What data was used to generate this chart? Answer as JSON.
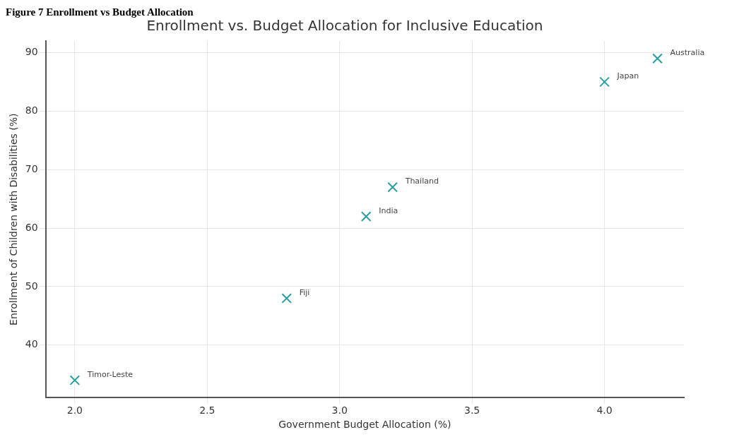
{
  "chart_data": {
    "type": "scatter",
    "title": "Enrollment vs. Budget Allocation for Inclusive Education",
    "xlabel": "Government Budget Allocation (%)",
    "ylabel": "Enrollment of Children with Disabilities (%)",
    "x": [
      2.0,
      2.8,
      3.1,
      3.2,
      4.0,
      4.2
    ],
    "series": [
      {
        "color": "#2a9d9f",
        "values": [
          34,
          48,
          62,
          67,
          85,
          89
        ]
      }
    ],
    "xlim": [
      1.89,
      4.3
    ],
    "xticks": [
      {
        "value": 2,
        "label": "2.0"
      },
      2.5,
      {
        "value": 3,
        "label": "3.0"
      },
      3.5,
      {
        "value": 4,
        "label": "4.0"
      }
    ],
    "ylim": [
      31,
      92
    ],
    "yticks": [
      40,
      50,
      60,
      70,
      80,
      90
    ],
    "grid": true,
    "marker": "cross",
    "legend": false,
    "annotations": [
      "Figure 7 Enrollment vs Budget Allocation",
      {
        "text": "Timor-Leste",
        "x": 2.0,
        "y": 34
      },
      {
        "text": "Fiji",
        "x": 2.8,
        "y": 48
      },
      {
        "text": "India",
        "x": 3.1,
        "y": 62
      },
      {
        "text": "Thailand",
        "x": 3.2,
        "y": 67
      },
      {
        "text": "Japan",
        "x": 4.0,
        "y": 85
      },
      {
        "text": "Australia",
        "x": 4.2,
        "y": 89
      }
    ]
  }
}
